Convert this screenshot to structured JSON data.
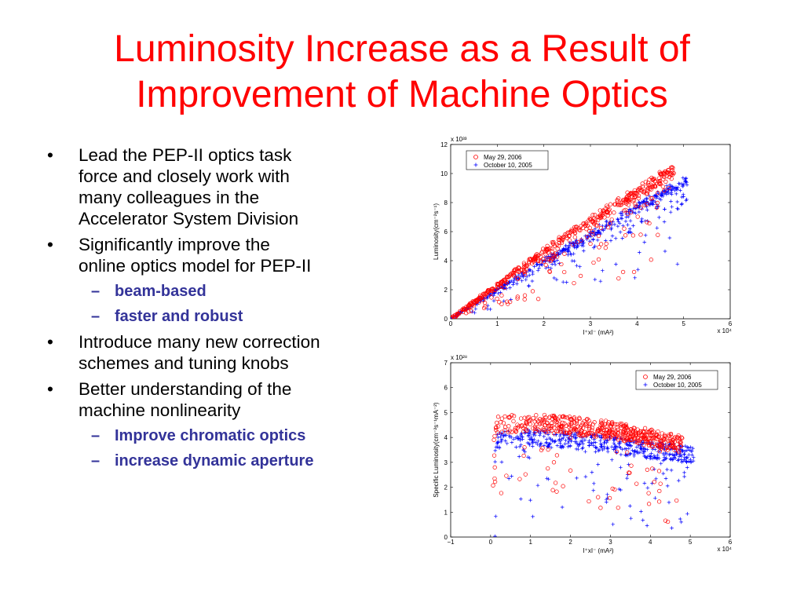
{
  "slide": {
    "title_line1": "Luminosity Increase as a Result of",
    "title_line2": "Improvement of Machine Optics"
  },
  "bullets": [
    {
      "text_lines": [
        "Lead the PEP-II optics task",
        "force and closely work with",
        "many colleagues in the",
        "Accelerator System Division"
      ]
    },
    {
      "text_lines": [
        "Significantly improve  the",
        "online optics model for PEP-II"
      ],
      "subs": [
        "beam-based",
        "faster and robust"
      ]
    },
    {
      "text_lines": [
        "Introduce many new correction",
        "schemes and tuning knobs"
      ]
    },
    {
      "text_lines": [
        "Better understanding of the",
        "machine nonlinearity"
      ],
      "subs": [
        "Improve chromatic optics",
        "increase dynamic aperture"
      ]
    }
  ],
  "bullet_char": "•",
  "dash_char": "–",
  "colors": {
    "title": "#ff0000",
    "sub_bullets": "#333399",
    "series_2006": "#ff0000",
    "series_2005": "#0000ff"
  },
  "chart_data": [
    {
      "type": "scatter",
      "xlabel": "I⁺xI⁻ (mA²)",
      "ylabel": "Luminosity(cm⁻²s⁻¹)",
      "x_multiplier": "x 10⁴",
      "y_multiplier": "x 10³³",
      "xlim": [
        0,
        6
      ],
      "ylim": [
        0,
        12
      ],
      "xticks": [
        "0",
        "1",
        "2",
        "3",
        "4",
        "5",
        "6"
      ],
      "yticks": [
        "0",
        "2",
        "4",
        "6",
        "8",
        "10",
        "12"
      ],
      "legend_position": "top-left",
      "series": [
        {
          "name": "May 29, 2006",
          "marker": "circle",
          "color": "#ff0000",
          "trend": [
            [
              0,
              0
            ],
            [
              1,
              2.4
            ],
            [
              2,
              4.8
            ],
            [
              3,
              7.0
            ],
            [
              4,
              9.0
            ],
            [
              4.8,
              10.6
            ]
          ]
        },
        {
          "name": "October 10, 2005",
          "marker": "plus",
          "color": "#0000ff",
          "trend": [
            [
              0,
              0
            ],
            [
              1,
              2.1
            ],
            [
              2,
              4.1
            ],
            [
              3,
              6.0
            ],
            [
              4,
              7.9
            ],
            [
              5.1,
              9.9
            ]
          ]
        }
      ]
    },
    {
      "type": "scatter",
      "xlabel": "I⁺xI⁻ (mA²)",
      "ylabel": "Specific Luminosity(cm⁻²s⁻¹mA⁻²)",
      "x_multiplier": "x 10⁴",
      "y_multiplier": "x 10²⁸",
      "xlim": [
        -1,
        6
      ],
      "ylim": [
        0,
        7
      ],
      "xticks": [
        "−1",
        "0",
        "1",
        "2",
        "3",
        "4",
        "5",
        "6"
      ],
      "yticks": [
        "0",
        "1",
        "2",
        "3",
        "4",
        "5",
        "6",
        "7"
      ],
      "legend_position": "top-right",
      "series": [
        {
          "name": "May 29, 2006",
          "marker": "circle",
          "color": "#ff0000",
          "trend": [
            [
              0.05,
              4.6
            ],
            [
              1,
              4.7
            ],
            [
              2,
              4.6
            ],
            [
              3,
              4.4
            ],
            [
              4,
              4.1
            ],
            [
              4.8,
              3.8
            ]
          ]
        },
        {
          "name": "October 10, 2005",
          "marker": "plus",
          "color": "#0000ff",
          "trend": [
            [
              0.05,
              4.0
            ],
            [
              1,
              4.1
            ],
            [
              2,
              4.0
            ],
            [
              3,
              3.8
            ],
            [
              4,
              3.6
            ],
            [
              5.1,
              3.4
            ]
          ]
        }
      ]
    }
  ]
}
